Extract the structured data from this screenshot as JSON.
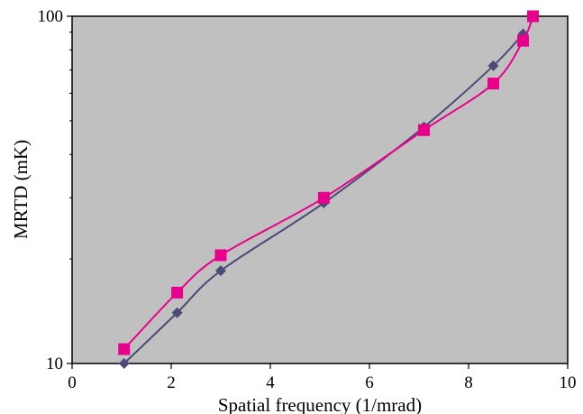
{
  "chart_data": {
    "type": "line",
    "title": "",
    "xlabel": "Spatial frequency (1/mrad)",
    "ylabel": "MRTD (mK)",
    "xlim": [
      0,
      10
    ],
    "ylim": [
      10,
      100
    ],
    "yscale": "log",
    "x_ticks": [
      "0",
      "2",
      "4",
      "6",
      "8",
      "10"
    ],
    "y_ticks": [
      "10",
      "100"
    ],
    "grid": false,
    "legend": "none",
    "plot_background": "#c0c0c0",
    "series": [
      {
        "marker": "diamond",
        "color": "#4b4a78",
        "points": [
          {
            "x": 1.05,
            "y": 10.0
          },
          {
            "x": 2.12,
            "y": 14.0
          },
          {
            "x": 3.0,
            "y": 18.5
          },
          {
            "x": 5.08,
            "y": 29.0
          },
          {
            "x": 7.1,
            "y": 48.0
          },
          {
            "x": 8.5,
            "y": 72.0
          },
          {
            "x": 9.1,
            "y": 89.0
          }
        ]
      },
      {
        "marker": "square",
        "color": "#e8008c",
        "points": [
          {
            "x": 1.05,
            "y": 11.0
          },
          {
            "x": 2.12,
            "y": 16.0
          },
          {
            "x": 3.0,
            "y": 20.5
          },
          {
            "x": 5.08,
            "y": 30.0
          },
          {
            "x": 7.1,
            "y": 47.0
          },
          {
            "x": 8.5,
            "y": 64.0
          },
          {
            "x": 9.1,
            "y": 85.0
          },
          {
            "x": 9.3,
            "y": 100.0
          }
        ]
      }
    ]
  }
}
